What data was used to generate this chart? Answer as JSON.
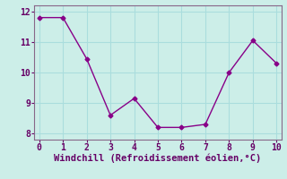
{
  "x": [
    0,
    1,
    2,
    3,
    4,
    5,
    6,
    7,
    8,
    9,
    10
  ],
  "y": [
    11.8,
    11.8,
    10.45,
    8.6,
    9.15,
    8.2,
    8.2,
    8.3,
    10.0,
    11.05,
    10.3
  ],
  "line_color": "#880088",
  "marker": "D",
  "marker_size": 2.5,
  "xlabel": "Windchill (Refroidissement éolien,°C)",
  "xlabel_fontsize": 7.5,
  "xlim": [
    -0.2,
    10.2
  ],
  "ylim": [
    7.8,
    12.2
  ],
  "yticks": [
    8,
    9,
    10,
    11,
    12
  ],
  "xticks": [
    0,
    1,
    2,
    3,
    4,
    5,
    6,
    7,
    8,
    9,
    10
  ],
  "background_color": "#cceee8",
  "grid_color": "#aadddd",
  "tick_color": "#660066",
  "label_color": "#660066",
  "spine_color": "#886688"
}
